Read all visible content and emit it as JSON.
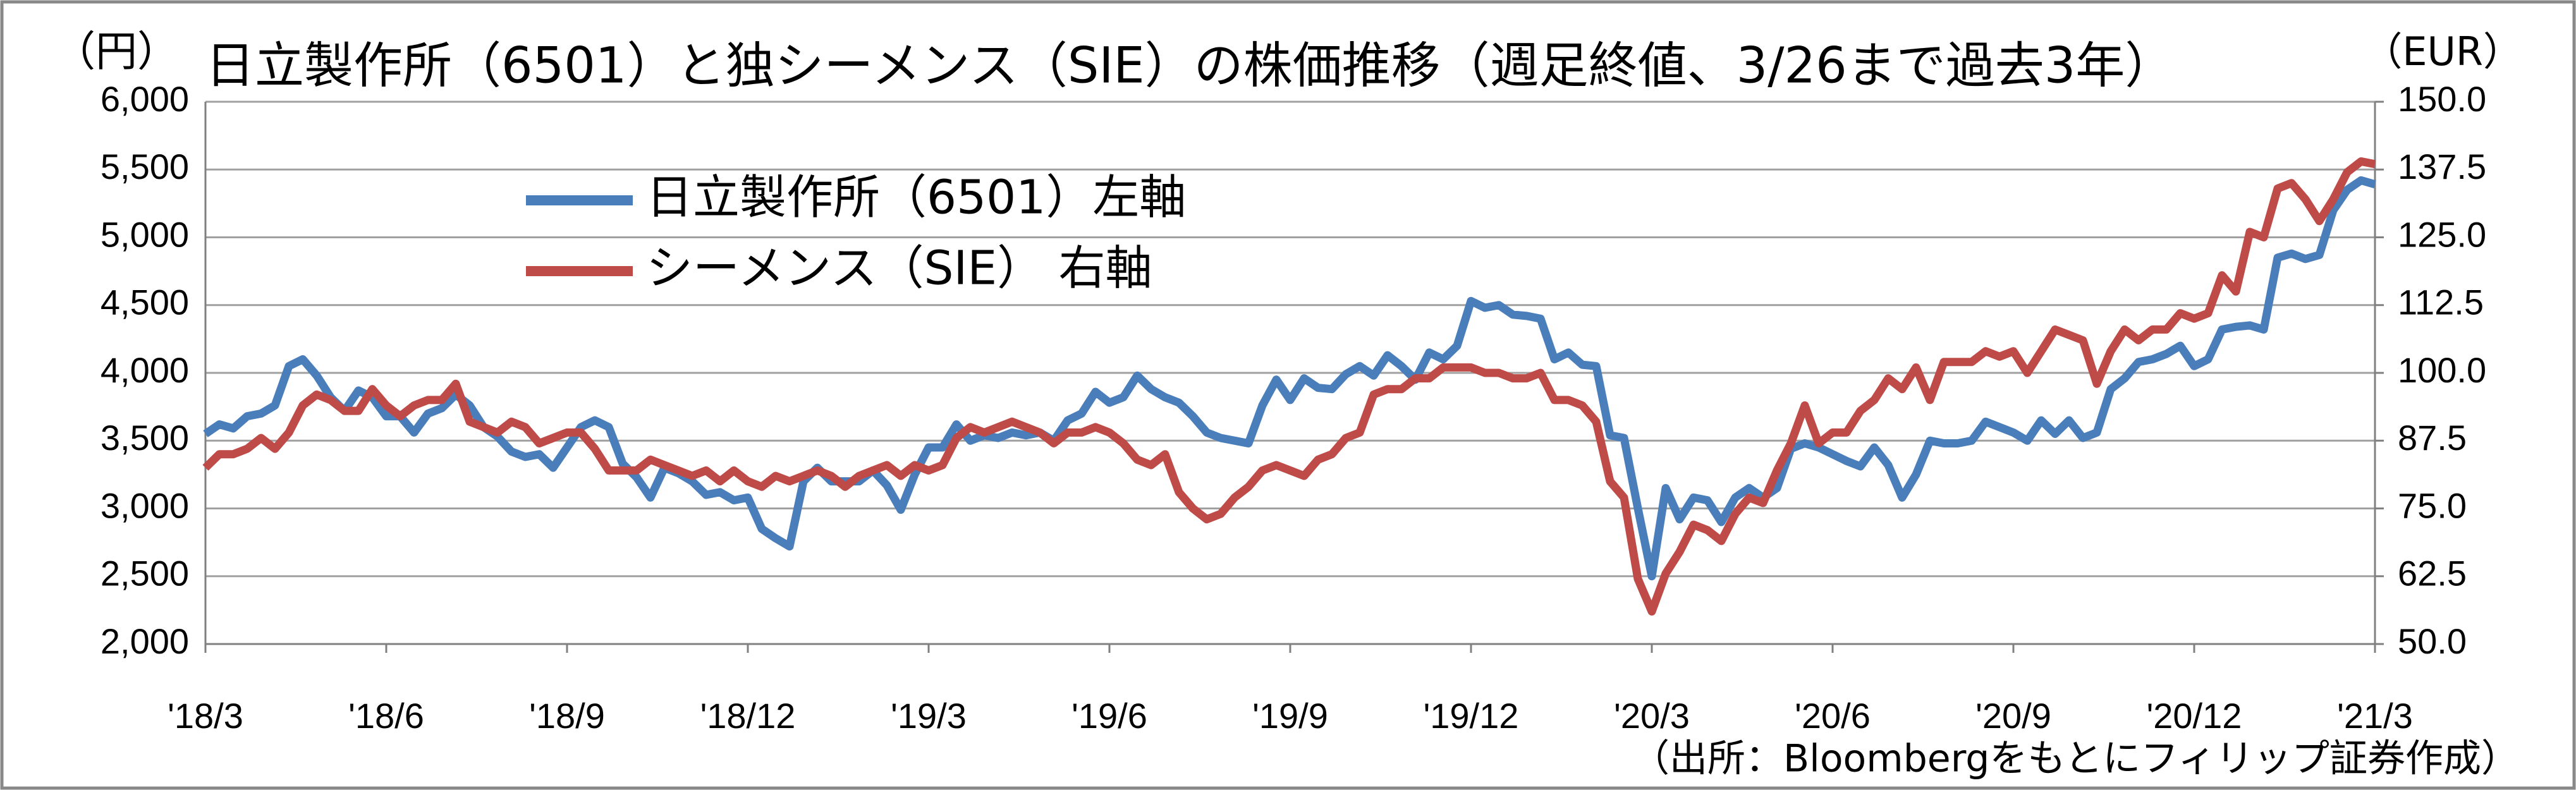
{
  "chart_data": {
    "type": "line",
    "title": "日立製作所（6501）と独シーメンス（SIE）の株価推移（週足終値、3/26まで過去3年）",
    "y_label": "（円）",
    "y2_label": "（EUR）",
    "source": "（出所：Bloombergをもとにフィリップ証券作成）",
    "categories": [
      "'18/3",
      null,
      null,
      null,
      null,
      null,
      null,
      null,
      null,
      null,
      null,
      null,
      null,
      "'18/6",
      null,
      null,
      null,
      null,
      null,
      null,
      null,
      null,
      null,
      null,
      null,
      null,
      "'18/9",
      null,
      null,
      null,
      null,
      null,
      null,
      null,
      null,
      null,
      null,
      null,
      null,
      "'18/12",
      null,
      null,
      null,
      null,
      null,
      null,
      null,
      null,
      null,
      null,
      null,
      null,
      "'19/3",
      null,
      null,
      null,
      null,
      null,
      null,
      null,
      null,
      null,
      null,
      null,
      null,
      "'19/6",
      null,
      null,
      null,
      null,
      null,
      null,
      null,
      null,
      null,
      null,
      null,
      null,
      "'19/9",
      null,
      null,
      null,
      null,
      null,
      null,
      null,
      null,
      null,
      null,
      null,
      null,
      "'19/12",
      null,
      null,
      null,
      null,
      null,
      null,
      null,
      null,
      null,
      null,
      null,
      null,
      "'20/3",
      null,
      null,
      null,
      null,
      null,
      null,
      null,
      null,
      null,
      null,
      null,
      null,
      "'20/6",
      null,
      null,
      null,
      null,
      null,
      null,
      null,
      null,
      null,
      null,
      null,
      null,
      "'20/9",
      null,
      null,
      null,
      null,
      null,
      null,
      null,
      null,
      null,
      null,
      null,
      null,
      "'20/12",
      null,
      null,
      null,
      null,
      null,
      null,
      null,
      null,
      null,
      null,
      null,
      null,
      "'21/3"
    ],
    "series": [
      {
        "name": "日立製作所（6501）左軸",
        "color": "#4a7ebb",
        "axis": "y",
        "values": [
          3550,
          3620,
          3590,
          3680,
          3700,
          3760,
          4050,
          4100,
          3980,
          3820,
          3720,
          3870,
          3820,
          3680,
          3680,
          3560,
          3700,
          3740,
          3840,
          3760,
          3600,
          3530,
          3420,
          3380,
          3400,
          3300,
          3450,
          3600,
          3650,
          3600,
          3330,
          3230,
          3080,
          3300,
          3260,
          3200,
          3100,
          3120,
          3060,
          3080,
          2850,
          2780,
          2720,
          3200,
          3300,
          3200,
          3200,
          3200,
          3280,
          3170,
          2990,
          3250,
          3450,
          3450,
          3620,
          3500,
          3540,
          3520,
          3560,
          3540,
          3560,
          3500,
          3650,
          3700,
          3860,
          3780,
          3820,
          3980,
          3880,
          3820,
          3780,
          3680,
          3560,
          3520,
          3500,
          3480,
          3760,
          3950,
          3800,
          3960,
          3890,
          3880,
          3990,
          4050,
          3980,
          4130,
          4050,
          3950,
          4150,
          4100,
          4200,
          4530,
          4480,
          4500,
          4430,
          4420,
          4400,
          4100,
          4150,
          4060,
          4050,
          3540,
          3520,
          3000,
          2500,
          3150,
          2920,
          3080,
          3060,
          2900,
          3080,
          3150,
          3080,
          3150,
          3440,
          3480,
          3450,
          3400,
          3350,
          3310,
          3450,
          3320,
          3080,
          3250,
          3500,
          3480,
          3480,
          3500,
          3640,
          3600,
          3560,
          3500,
          3650,
          3550,
          3650,
          3520,
          3560,
          3880,
          3960,
          4080,
          4100,
          4140,
          4200,
          4050,
          4100,
          4320,
          4340,
          4350,
          4320,
          4850,
          4880,
          4840,
          4870,
          5200,
          5350,
          5420,
          5390
        ]
      },
      {
        "name": "シーメンス（SIE） 右軸",
        "color": "#be4b48",
        "axis": "y2",
        "values": [
          82.5,
          85,
          85,
          86,
          88,
          86,
          89,
          94,
          96,
          95,
          93,
          93,
          97,
          94,
          92,
          94,
          95,
          95,
          98,
          91,
          90,
          89,
          91,
          90,
          87,
          88,
          89,
          89,
          86,
          82,
          82,
          82,
          84,
          83,
          82,
          81,
          82,
          80,
          82,
          80,
          79,
          81,
          80,
          81,
          82,
          81,
          79,
          81,
          82,
          83,
          81,
          83,
          82,
          83,
          88,
          90,
          89,
          90,
          91,
          90,
          89,
          87,
          89,
          89,
          90,
          89,
          87,
          84,
          83,
          85,
          78,
          75,
          73,
          74,
          77,
          79,
          82,
          83,
          82,
          81,
          84,
          85,
          88,
          89,
          96,
          97,
          97,
          99,
          99,
          101,
          101,
          101,
          100,
          100,
          99,
          99,
          100,
          95,
          95,
          94,
          91,
          80,
          77,
          62,
          56,
          63,
          67,
          72,
          71,
          69,
          74,
          77,
          76,
          82,
          87,
          94,
          87,
          89,
          89,
          93,
          95,
          99,
          97,
          101,
          95,
          102,
          102,
          102,
          104,
          103,
          104,
          100,
          104,
          108,
          107,
          106,
          98,
          104,
          108,
          106,
          108,
          108,
          111,
          110,
          111,
          118,
          115,
          126,
          125,
          134,
          135,
          132,
          128,
          132,
          137,
          139,
          138.5
        ]
      }
    ],
    "ylim": [
      2000,
      6000
    ],
    "yticks": [
      {
        "value": 2000,
        "label": "2,000"
      },
      {
        "value": 2500,
        "label": "2,500"
      },
      {
        "value": 3000,
        "label": "3,000"
      },
      {
        "value": 3500,
        "label": "3,500"
      },
      {
        "value": 4000,
        "label": "4,000"
      },
      {
        "value": 4500,
        "label": "4,500"
      },
      {
        "value": 5000,
        "label": "5,000"
      },
      {
        "value": 5500,
        "label": "5,500"
      },
      {
        "value": 6000,
        "label": "6,000"
      }
    ],
    "y2lim": [
      50,
      150
    ],
    "y2ticks": [
      {
        "value": 50,
        "label": "50.0"
      },
      62.5,
      {
        "value": 75,
        "label": "75.0"
      },
      87.5,
      {
        "value": 100,
        "label": "100.0"
      },
      112.5,
      {
        "value": 125,
        "label": "125.0"
      },
      137.5,
      {
        "value": 150,
        "label": "150.0"
      }
    ],
    "grid": true,
    "legend": "upper left"
  }
}
